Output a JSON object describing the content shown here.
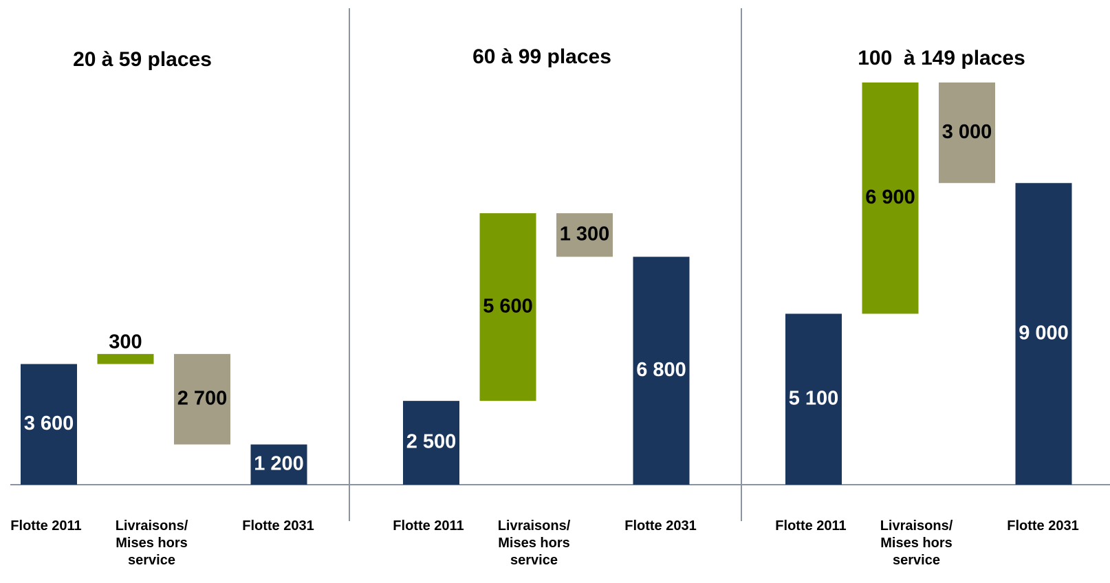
{
  "chart_data": [
    {
      "type": "waterfall",
      "title": "20 à 59 places",
      "categories": [
        "Flotte 2011",
        "Livraisons/ Mises hors service",
        null,
        "Flotte 2031"
      ],
      "measure": [
        "total",
        "relative",
        "relative",
        "total"
      ],
      "values": [
        3600,
        300,
        -2700,
        1200
      ],
      "value_labels": [
        "3 600",
        "300",
        "2 700",
        "1 200"
      ],
      "colors": {
        "total": "#1b365d",
        "increase": "#7a9a01",
        "decrease": "#a59e87"
      },
      "ylim": [
        0,
        12000
      ]
    },
    {
      "type": "waterfall",
      "title": "60 à 99 places",
      "categories": [
        "Flotte 2011",
        "Livraisons/ Mises hors service",
        null,
        "Flotte 2031"
      ],
      "measure": [
        "total",
        "relative",
        "relative",
        "total"
      ],
      "values": [
        2500,
        5600,
        -1300,
        6800
      ],
      "value_labels": [
        "2 500",
        "5 600",
        "1 300",
        "6 800"
      ],
      "colors": {
        "total": "#1b365d",
        "increase": "#7a9a01",
        "decrease": "#a59e87"
      },
      "ylim": [
        0,
        12000
      ]
    },
    {
      "type": "waterfall",
      "title": "100  à 149 places",
      "categories": [
        "Flotte 2011",
        "Livraisons/ Mises hors service",
        null,
        "Flotte 2031"
      ],
      "measure": [
        "total",
        "relative",
        "relative",
        "total"
      ],
      "values": [
        5100,
        6900,
        -3000,
        9000
      ],
      "value_labels": [
        "5 100",
        "6 900",
        "3 000",
        "9 000"
      ],
      "colors": {
        "total": "#1b365d",
        "increase": "#7a9a01",
        "decrease": "#a59e87"
      },
      "ylim": [
        0,
        12000
      ]
    }
  ]
}
